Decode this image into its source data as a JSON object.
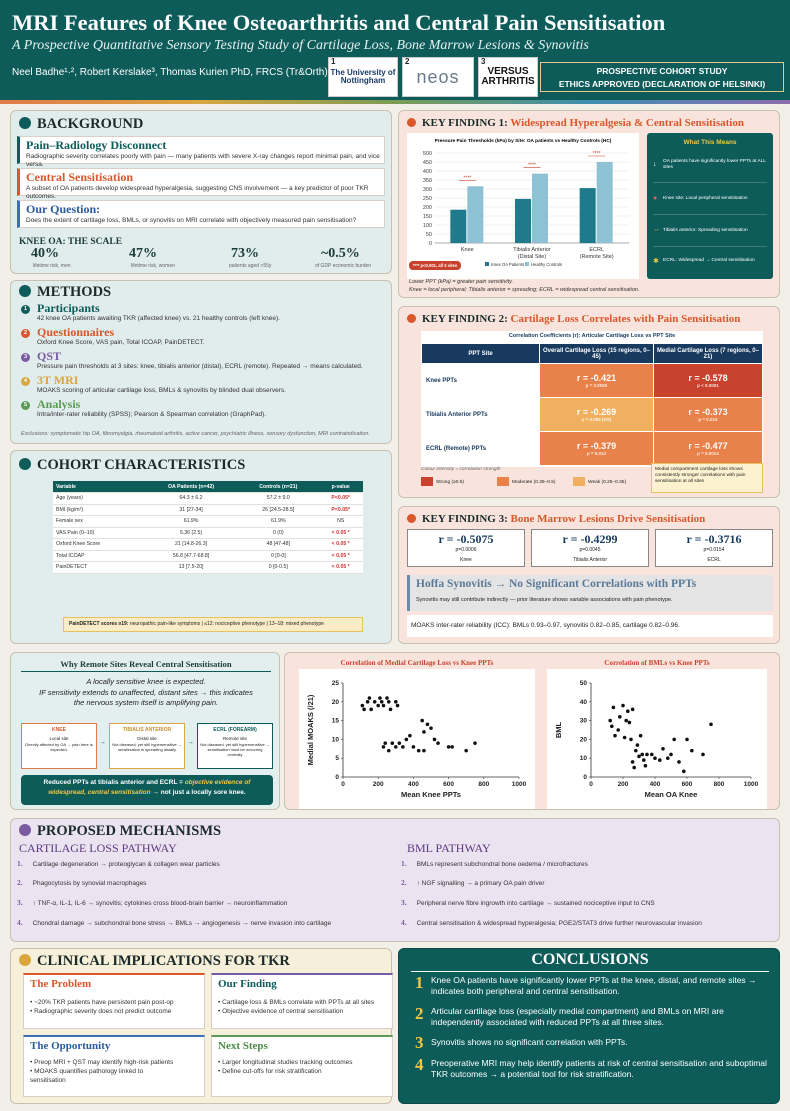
{
  "header": {
    "title": "MRI Features of Knee Osteoarthritis and Central Pain Sensitisation",
    "subtitle": "A Prospective Quantitative Sensory Testing Study of Cartilage Loss, Bone Marrow Lesions & Synovitis",
    "authors": "Neel Badhe¹·², Robert Kerslake³, Thomas Kurien PhD, FRCS (Tr&Orth)¹·²",
    "logos": [
      {
        "n": "1",
        "text": "The University of Nottingham"
      },
      {
        "n": "2",
        "text": "neos"
      },
      {
        "n": "3",
        "text": "VERSUS ARTHRITIS"
      }
    ],
    "box_line1": "PROSPECTIVE COHORT STUDY",
    "box_line2": "ETHICS APPROVED (DECLARATION OF HELSINKI)"
  },
  "background": {
    "title": "BACKGROUND",
    "items": [
      {
        "h": "Pain–Radiology Disconnect",
        "t": "Radiographic severity correlates poorly with pain — many patients with severe X-ray changes report minimal pain, and vice versa."
      },
      {
        "h": "Central Sensitisation",
        "t": "A subset of OA patients develop widespread hyperalgesia, suggesting CNS involvement — a key predictor of poor TKR outcomes."
      },
      {
        "h": "Our Question:",
        "t": "Does the extent of cartilage loss, BMLs, or synovitis on MRI correlate with objectively measured pain sensitisation?"
      }
    ],
    "scale_title": "KNEE OA: THE SCALE",
    "scale": [
      {
        "v": "40%",
        "c": "lifetime risk, men"
      },
      {
        "v": "47%",
        "c": "lifetime risk, women"
      },
      {
        "v": "73%",
        "c": "patients aged >55y"
      },
      {
        "v": "~0.5%",
        "c": "of GDP economic burden"
      }
    ]
  },
  "methods": {
    "title": "METHODS",
    "items": [
      {
        "n": "1",
        "h": "Participants",
        "t": "42 knee OA patients awaiting TKR (affected knee) vs. 21 healthy controls (left knee)."
      },
      {
        "n": "2",
        "h": "Questionnaires",
        "t": "Oxford Knee Score, VAS pain, Total ICOAP, PainDETECT."
      },
      {
        "n": "3",
        "h": "QST",
        "t": "Pressure pain thresholds at 3 sites: knee, tibialis anterior (distal), ECRL (remote). Repeated → means calculated."
      },
      {
        "n": "4",
        "h": "3T MRI",
        "t": "MOAKS scoring of articular cartilage loss, BMLs & synovitis by blinded dual observers."
      },
      {
        "n": "5",
        "h": "Analysis",
        "t": "Intra/inter-rater reliability (SPSS); Pearson & Spearman correlation (GraphPad)."
      }
    ],
    "exclusions": "Exclusions: symptomatic hip OA, fibromyalgia, rheumatoid arthritis, active cancer, psychiatric illness, sensory dysfunction, MRI contraindication."
  },
  "cohort": {
    "title": "COHORT CHARACTERISTICS",
    "headers": [
      "Variable",
      "OA Patients (n=42)",
      "Controls (n=21)",
      "p-value"
    ],
    "rows": [
      [
        "Age (years)",
        "64.3 ± 6.2",
        "57.2 ± 9.0",
        "P<0.05*"
      ],
      [
        "BMI (kg/m²)",
        "31 [27-34]",
        "26 [24.5-28.5]",
        "P<0.05*"
      ],
      [
        "Female sex",
        "61.9%",
        "61.9%",
        "NS"
      ],
      [
        "VAS Pain (0–10)",
        "5.36 (2.5)",
        "0 (0)",
        "< 0.05 *"
      ],
      [
        "Oxford Knee Score",
        "21 [14.8-26.3]",
        "48 [47-48]",
        "< 0.05 *"
      ],
      [
        "Total ICOAP",
        "56.8 [47.7-68.8]",
        "0 [0-0]",
        "< 0.05 *"
      ],
      [
        "PainDETECT",
        "13 [7.5-20]",
        "0 [0-0.5]",
        "< 0.05 *"
      ]
    ],
    "note_b": "PainDETECT scores ≥19:",
    "note": " neuropathic pain-like symptoms  |  ≤12: nociceptive phenotype  |  13–18: mixed phenotype"
  },
  "kf1": {
    "title_a": "KEY FINDING 1: ",
    "title_b": "Widespread Hyperalgesia & Central Sensitisation",
    "caption1": "Lower PPT (kPa) = greater pain sensitivity.",
    "caption2": "Knee = local peripheral; Tibialis anterior = spreading; ECRL = widespread central sensitisation.",
    "side_title": "What This Means",
    "side": [
      "OA patients have significantly lower PPTs at ALL sites",
      "Knee site: Local peripheral sensitisation",
      "Tibialis anterior: Spreading sensitisation",
      "ECRL: Widespread → Central sensitisation"
    ],
    "side_icons": [
      "down-arrow-icon",
      "pin-icon",
      "arrows-icon",
      "brain-icon"
    ],
    "sig_note": "**** p<0.001, all 3 sites",
    "sig": "****"
  },
  "chart_data": [
    {
      "type": "bar",
      "title": "Pressure Pain Thresholds (kPa) by Site: OA patients vs Healthy Controls (HC)",
      "categories": [
        "Knee",
        "Tibialis Anterior (Distal Site)",
        "ECRL (Remote Site)"
      ],
      "series": [
        {
          "name": "Knee OA Patients",
          "values": [
            185,
            245,
            305
          ]
        },
        {
          "name": "Healthy Controls",
          "values": [
            315,
            385,
            450
          ]
        }
      ],
      "ylim": [
        0,
        500
      ],
      "yticks": [
        0,
        50,
        100,
        150,
        200,
        250,
        300,
        350,
        400,
        450,
        500
      ],
      "colors": [
        "#1f7a8c",
        "#8fc1d4"
      ],
      "legend": "bottom"
    },
    {
      "type": "scatter",
      "title": "Correlation of Medial Cartilage Loss vs Knee PPTs",
      "xlabel": "Mean Knee PPTs",
      "ylabel": "Medial MOAKS (/21)",
      "xlim": [
        0,
        1000
      ],
      "ylim": [
        0,
        25
      ],
      "xticks": [
        0,
        200,
        400,
        600,
        800,
        1000
      ],
      "yticks": [
        0,
        5,
        10,
        15,
        20,
        25
      ],
      "points": [
        [
          110,
          19
        ],
        [
          120,
          18
        ],
        [
          140,
          20
        ],
        [
          150,
          21
        ],
        [
          160,
          18
        ],
        [
          180,
          20
        ],
        [
          200,
          19
        ],
        [
          210,
          21
        ],
        [
          220,
          20
        ],
        [
          230,
          19
        ],
        [
          250,
          21
        ],
        [
          260,
          20
        ],
        [
          270,
          18
        ],
        [
          300,
          20
        ],
        [
          310,
          19
        ],
        [
          230,
          8
        ],
        [
          240,
          9
        ],
        [
          260,
          7
        ],
        [
          280,
          9
        ],
        [
          300,
          8
        ],
        [
          320,
          9
        ],
        [
          340,
          8
        ],
        [
          360,
          10
        ],
        [
          380,
          11
        ],
        [
          400,
          8
        ],
        [
          430,
          7
        ],
        [
          450,
          15
        ],
        [
          460,
          12
        ],
        [
          480,
          14
        ],
        [
          500,
          13
        ],
        [
          520,
          10
        ],
        [
          540,
          9
        ],
        [
          600,
          8
        ],
        [
          620,
          8
        ],
        [
          700,
          7
        ],
        [
          750,
          9
        ],
        [
          460,
          7
        ]
      ]
    },
    {
      "type": "scatter",
      "title": "Correlation of BMLs vs Knee PPTs",
      "xlabel": "Mean OA Knee",
      "ylabel": "BML",
      "xlim": [
        0,
        1000
      ],
      "ylim": [
        0,
        50
      ],
      "xticks": [
        0,
        200,
        400,
        600,
        800,
        1000
      ],
      "yticks": [
        0,
        10,
        20,
        30,
        40,
        50
      ],
      "points": [
        [
          120,
          30
        ],
        [
          130,
          27
        ],
        [
          140,
          37
        ],
        [
          150,
          22
        ],
        [
          170,
          25
        ],
        [
          180,
          32
        ],
        [
          200,
          38
        ],
        [
          210,
          21
        ],
        [
          220,
          30
        ],
        [
          230,
          35
        ],
        [
          240,
          29
        ],
        [
          250,
          20
        ],
        [
          260,
          36
        ],
        [
          280,
          14
        ],
        [
          290,
          17
        ],
        [
          300,
          11
        ],
        [
          310,
          22
        ],
        [
          320,
          12
        ],
        [
          330,
          9
        ],
        [
          340,
          6
        ],
        [
          350,
          12
        ],
        [
          380,
          12
        ],
        [
          400,
          10
        ],
        [
          430,
          9
        ],
        [
          450,
          15
        ],
        [
          480,
          10
        ],
        [
          500,
          12
        ],
        [
          520,
          20
        ],
        [
          550,
          8
        ],
        [
          580,
          3
        ],
        [
          600,
          20
        ],
        [
          630,
          14
        ],
        [
          700,
          12
        ],
        [
          750,
          28
        ],
        [
          270,
          5
        ],
        [
          260,
          8
        ]
      ]
    }
  ],
  "kf2": {
    "title_a": "KEY FINDING 2: ",
    "title_b": "Cartilage Loss Correlates with Pain Sensitisation",
    "table_title": "Correlation Coefficients (r): Articular Cartilage Loss vs PPT Site",
    "headers": [
      "PPT Site",
      "Overall Cartilage Loss (15 regions, 0–45)",
      "Medial Cartilage Loss (7 regions, 0–21)"
    ],
    "rows": [
      {
        "site": "Knee PPTs",
        "a": "r = -0.421",
        "ap": "p = 0.0055",
        "b": "r = -0.578",
        "bp": "p < 0.0001",
        "ca": "#e8824a",
        "cb": "#c8422e"
      },
      {
        "site": "Tibialis Anterior PPTs",
        "a": "r = -0.269",
        "ap": "p = 0.085 (NS)",
        "b": "r = -0.373",
        "bp": "p = 0.015",
        "ca": "#f0b060",
        "cb": "#e8824a"
      },
      {
        "site": "ECRL (Remote) PPTs",
        "a": "r = -0.379",
        "ap": "p = 0.013",
        "b": "r = -0.477",
        "bp": "p = 0.0014",
        "ca": "#e8824a",
        "cb": "#e8824a"
      }
    ],
    "legend_title": "Colour intensity = correlation strength",
    "legend": [
      {
        "label": "Strong (≥0.5)",
        "color": "#c8422e"
      },
      {
        "label": "Moderate (0.35–0.5)",
        "color": "#e8824a"
      },
      {
        "label": "Weak (0.25–0.35)",
        "color": "#f0b060"
      }
    ],
    "note": "Medial compartment cartilage loss shows consistently stronger correlations with pain sensitisation at all sites"
  },
  "kf3": {
    "title_a": "KEY FINDING 3: ",
    "title_b": "Bone Marrow Lesions Drive Sensitisation",
    "cards": [
      {
        "r": "r = -0.5075",
        "p": "p=0.0006",
        "s": "Knee"
      },
      {
        "r": "r = -0.4299",
        "p": "p=0.0045",
        "s": "Tibialis Anterior"
      },
      {
        "r": "r = -0.3716",
        "p": "p=0.0154",
        "s": "ECRL"
      }
    ],
    "hoffa_t": "Hoffa Synovitis → No Significant Correlations with PPTs",
    "hoffa_s": "Synovitis may still contribute indirectly — prior literature shows variable associations with pain phenotype.",
    "icc": "MOAKS inter-rater reliability (ICC): BMLs 0.93–0.97, synovitis 0.82–0.85, cartilage 0.82–0.96."
  },
  "remote": {
    "title": "Why Remote Sites Reveal Central Sensitisation",
    "l1": "A locally sensitive knee is expected.",
    "l2": "IF sensitivity extends to unaffected, distant sites → this indicates",
    "l3": "the nervous system itself is amplifying pain.",
    "boxes": [
      {
        "h": "KNEE",
        "s": "Local site",
        "t": "Directly affected by OA → pain here is expected."
      },
      {
        "h": "TIBIALIS ANTERIOR",
        "s": "Distal site",
        "t": "Not diseased, yet still hypersensitive → sensitisation is spreading distally"
      },
      {
        "h": "ECRL (FOREARM)",
        "s": "Remote site",
        "t": "Not diseased, yet still hypersensitive → sensitisation must be occurring centrally"
      }
    ],
    "c1": "Reduced PPTs at tibialis anterior and ECRL = ",
    "c2": "objective evidence of",
    "c3": "widespread, central sensitisation",
    "c4": " → not just a locally sore knee."
  },
  "mech": {
    "title": "PROPOSED MECHANISMS",
    "l_title": "CARTILAGE LOSS PATHWAY",
    "r_title": "BML PATHWAY",
    "left": [
      {
        "n": "1.",
        "t": "Cartilage degeneration → proteoglycan & collagen wear particles"
      },
      {
        "n": "2.",
        "t": "Phagocytosis by synovial macrophages"
      },
      {
        "n": "3.",
        "t": "↑ TNF-α, IL-1, IL-6 → synovitis; cytokines cross blood-brain barrier → neuroinflammation"
      },
      {
        "n": "4.",
        "t": "Chondral damage → subchondral bone stress → BMLs → angiogenesis → nerve invasion into cartilage"
      }
    ],
    "right": [
      {
        "n": "1.",
        "t": "BMLs represent subchondral bone oedema / microfractures"
      },
      {
        "n": "2.",
        "t": "↑ NGF signalling → a primary OA pain driver"
      },
      {
        "n": "3.",
        "t": "Peripheral nerve fibre ingrowth into cartilage → sustained nociceptive input to CNS"
      },
      {
        "n": "4.",
        "t": "Central sensitisation & widespread hyperalgesia; PGE2/STAT3 drive further neurovascular invasion"
      }
    ]
  },
  "clinical": {
    "title": "CLINICAL IMPLICATIONS FOR TKR",
    "boxes": [
      {
        "h": "The Problem",
        "b": [
          "• ~20% TKR patients have persistent pain post-op",
          "• Radiographic severity does not predict outcome"
        ]
      },
      {
        "h": "Our Finding",
        "b": [
          "• Cartilage loss & BMLs correlate with PPTs at all sites",
          "• Objective evidence of central sensitisation"
        ]
      },
      {
        "h": "The Opportunity",
        "b": [
          "• Preop MRI + QST may identify high-risk patients",
          "• MOAKS quantifies pathology linked to",
          "sensitisation"
        ]
      },
      {
        "h": "Next Steps",
        "b": [
          "• Larger longitudinal studies tracking outcomes",
          "• Define cut-offs for risk stratification"
        ]
      }
    ]
  },
  "conclusions": {
    "title": "CONCLUSIONS",
    "items": [
      {
        "n": "1",
        "t": "Knee OA patients have significantly lower PPTs at the knee, distal, and remote sites → indicates both peripheral and central sensitisation."
      },
      {
        "n": "2",
        "t": "Articular cartilage loss (especially medial compartment) and BMLs on MRI are independently associated with reduced PPTs at all three sites."
      },
      {
        "n": "3",
        "t": "Synovitis shows no significant correlation with PPTs."
      },
      {
        "n": "4",
        "t": "Preoperative MRI may help identify patients at risk of central sensitisation and suboptimal TKR outcomes → a potential tool for risk stratification."
      }
    ]
  },
  "colors": {
    "teal": "#0d5c5a",
    "orange": "#d9572b",
    "purple": "#7a5aa0",
    "gold": "#d9a640",
    "green": "#5a9c55"
  }
}
